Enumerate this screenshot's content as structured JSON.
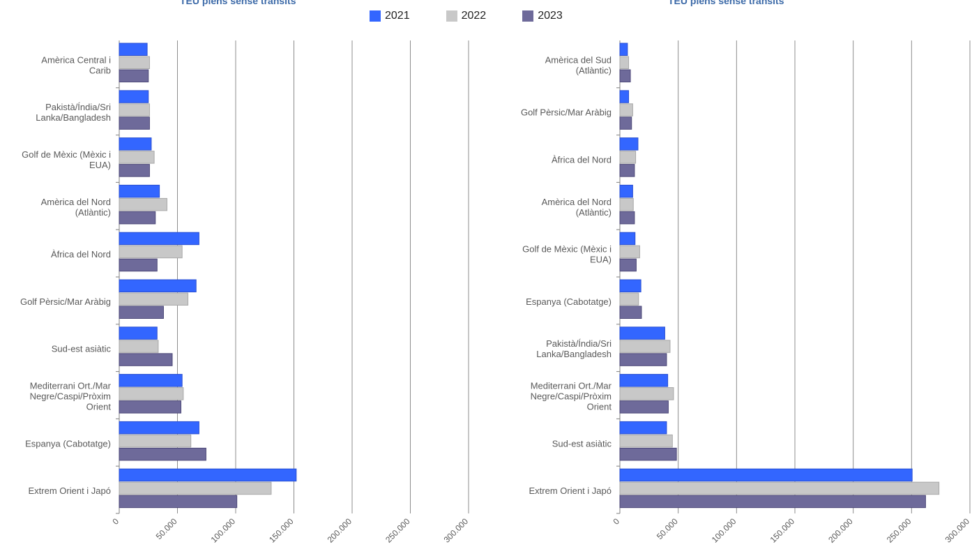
{
  "colors": {
    "2021": "#3366ff",
    "2022": "#c8c8c8",
    "2023": "#6e6a9a",
    "grid": "#8c8c8c",
    "axis": "#7f7f7f",
    "label": "#595959",
    "title": "#3c6aa8"
  },
  "legend": [
    {
      "name": "2021",
      "color": "#3366ff"
    },
    {
      "name": "2022",
      "color": "#c8c8c8"
    },
    {
      "name": "2023",
      "color": "#6e6a9a"
    }
  ],
  "chart_data": [
    {
      "type": "bar",
      "orientation": "horizontal",
      "title": "TEU plens sense trànsits",
      "categories": [
        "Amèrica Central i Carib",
        "Pakistà/Índia/Sri Lanka/Bangladesh",
        "Golf de Mèxic (Mèxic i EUA)",
        "Amèrica del Nord (Atlàntic)",
        "Àfrica del Nord",
        "Golf Pèrsic/Mar Aràbig",
        "Sud-est asiàtic",
        "Mediterrani Ort./Mar Negre/Caspi/Pròxim Orient",
        "Espanya (Cabotatge)",
        "Extrem Orient i Japó"
      ],
      "series": [
        {
          "name": "2021",
          "values": [
            24000,
            25000,
            27500,
            34500,
            68500,
            66000,
            32500,
            54000,
            68500,
            152000
          ]
        },
        {
          "name": "2022",
          "values": [
            26000,
            26000,
            30000,
            41000,
            54000,
            59000,
            33500,
            55000,
            61500,
            130500
          ]
        },
        {
          "name": "2023",
          "values": [
            25000,
            26000,
            26000,
            31000,
            32500,
            38000,
            45500,
            53000,
            74500,
            101000
          ]
        }
      ],
      "xlim": [
        0,
        300000
      ],
      "xticks": [
        "0",
        "50.000",
        "100.000",
        "150.000",
        "200.000",
        "250.000",
        "300.000"
      ],
      "grid": true,
      "legend_position": "top"
    },
    {
      "type": "bar",
      "orientation": "horizontal",
      "title": "TEU plens sense trànsits",
      "categories": [
        "Amèrica del Sud (Atlàntic)",
        "Golf Pèrsic/Mar Aràbig",
        "Àfrica del Nord",
        "Amèrica del Nord (Atlàntic)",
        "Golf de Mèxic (Mèxic i EUA)",
        "Espanya (Cabotatge)",
        "Pakistà/Índia/Sri Lanka/Bangladesh",
        "Mediterrani Ort./Mar Negre/Caspi/Pròxim Orient",
        "Sud-est asiàtic",
        "Extrem Orient i Japó"
      ],
      "series": [
        {
          "name": "2021",
          "values": [
            6500,
            7500,
            15500,
            11000,
            13000,
            18000,
            38500,
            41000,
            40000,
            250500
          ]
        },
        {
          "name": "2022",
          "values": [
            7500,
            11000,
            13500,
            11500,
            17000,
            16000,
            43000,
            46000,
            45000,
            273500
          ]
        },
        {
          "name": "2023",
          "values": [
            9000,
            10000,
            12500,
            12500,
            14000,
            18500,
            40000,
            41500,
            48500,
            262000
          ]
        }
      ],
      "xlim": [
        0,
        300000
      ],
      "xticks": [
        "0",
        "50.000",
        "100.000",
        "150.000",
        "200.000",
        "250.000",
        "300.000"
      ],
      "grid": true,
      "legend_position": "top"
    }
  ]
}
